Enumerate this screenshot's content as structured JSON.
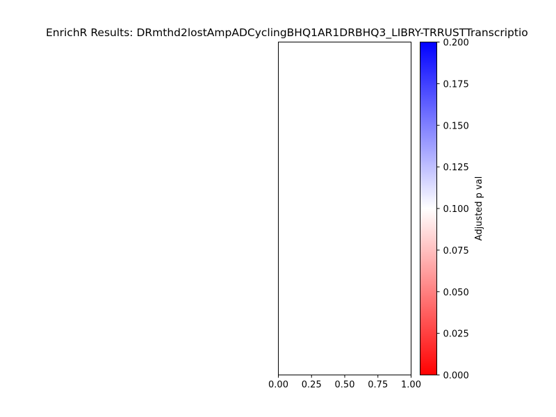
{
  "chart_data": {
    "type": "bar",
    "title": "EnrichR Results: DRmthd2lostAmpADCyclingBHQ1AR1DRBHQ3_LIBRY-TRRUSTTranscriptio",
    "xlabel": "",
    "ylabel": "",
    "xlim": [
      0.0,
      1.0
    ],
    "x_ticks": [
      "0.00",
      "0.25",
      "0.50",
      "0.75",
      "1.00"
    ],
    "categories": [],
    "values": [],
    "colorbar": {
      "label": "Adjusted p val",
      "range": [
        0.0,
        0.2
      ],
      "ticks": [
        "0.000",
        "0.025",
        "0.050",
        "0.075",
        "0.100",
        "0.125",
        "0.150",
        "0.175",
        "0.200"
      ],
      "colors": {
        "low": "#ff0000",
        "mid": "#ffffff",
        "high": "#0000ff"
      }
    }
  }
}
